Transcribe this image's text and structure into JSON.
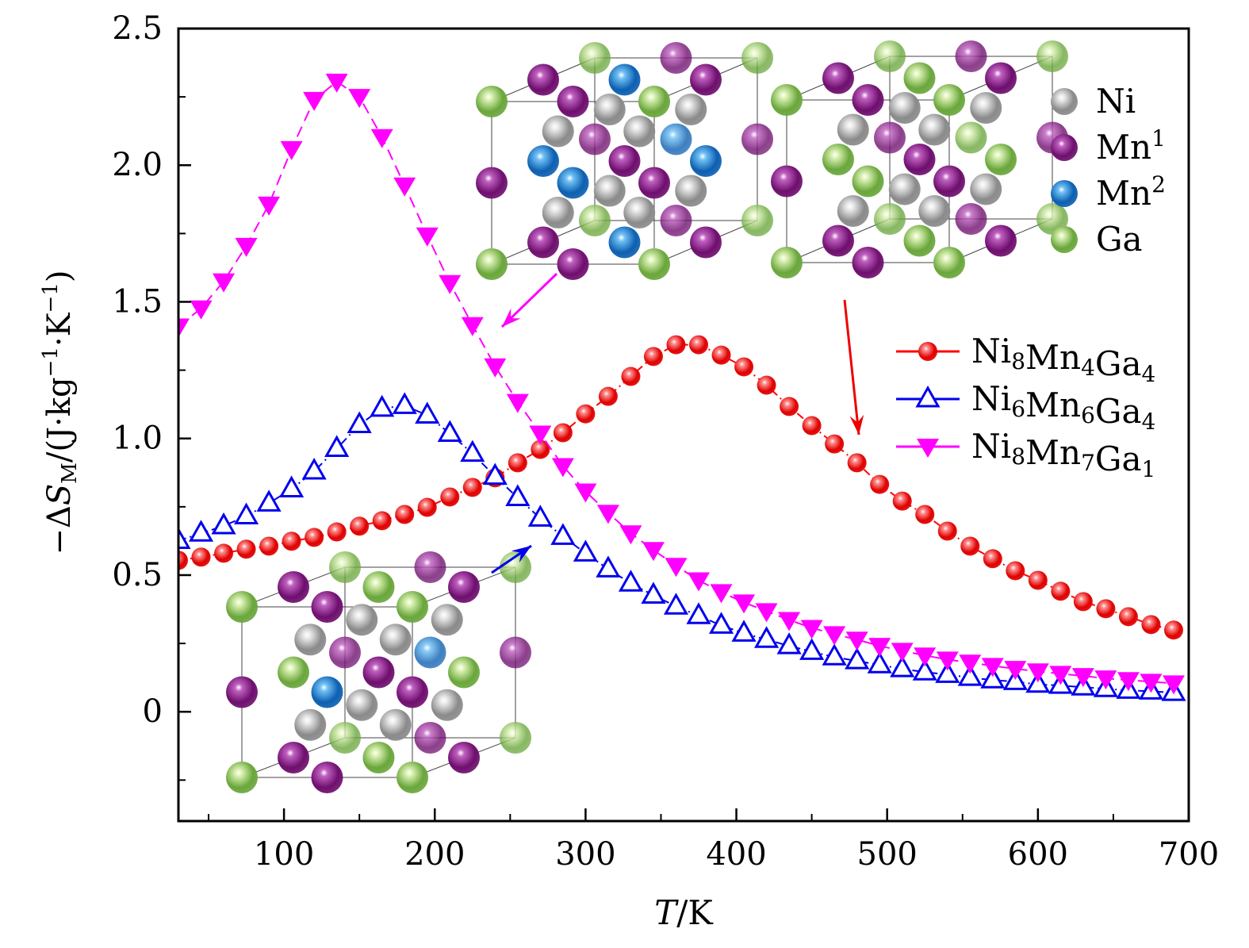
{
  "chart_data": {
    "type": "line",
    "title": "",
    "xlabel": "T/K",
    "ylabel": "−ΔS_M/(J·kg^−1·K^−1)",
    "xlim": [
      30,
      700
    ],
    "ylim": [
      -0.4,
      2.5
    ],
    "xticks": [
      100,
      200,
      300,
      400,
      500,
      600,
      700
    ],
    "yticks": [
      0,
      0.5,
      1.0,
      1.5,
      2.0,
      2.5
    ],
    "ytick_labels": [
      "0",
      "0.5",
      "1.0",
      "1.5",
      "2.0",
      "2.5"
    ],
    "grid": false,
    "legend_position": "right",
    "x": [
      30,
      45,
      60,
      75,
      90,
      105,
      120,
      135,
      150,
      165,
      180,
      195,
      210,
      225,
      240,
      255,
      270,
      285,
      300,
      315,
      330,
      345,
      360,
      375,
      390,
      405,
      420,
      435,
      450,
      465,
      480,
      495,
      510,
      525,
      540,
      555,
      570,
      585,
      600,
      615,
      630,
      645,
      660,
      675,
      690
    ],
    "series": [
      {
        "name": "Ni8Mn4Ga4",
        "label_parts": [
          [
            "Ni",
            "8"
          ],
          [
            "Mn",
            "4"
          ],
          [
            "Ga",
            "4"
          ]
        ],
        "color": "#ff0000",
        "marker": "sphere",
        "values": [
          0.554,
          0.566,
          0.58,
          0.595,
          0.606,
          0.624,
          0.638,
          0.658,
          0.679,
          0.699,
          0.722,
          0.748,
          0.786,
          0.821,
          0.856,
          0.911,
          0.96,
          1.021,
          1.09,
          1.154,
          1.227,
          1.3,
          1.343,
          1.343,
          1.305,
          1.262,
          1.195,
          1.117,
          1.047,
          0.98,
          0.911,
          0.832,
          0.771,
          0.722,
          0.661,
          0.606,
          0.56,
          0.516,
          0.481,
          0.441,
          0.403,
          0.377,
          0.348,
          0.319,
          0.299
        ]
      },
      {
        "name": "Ni6Mn6Ga4",
        "label_parts": [
          [
            "Ni",
            "6"
          ],
          [
            "Mn",
            "6"
          ],
          [
            "Ga",
            "4"
          ]
        ],
        "color": "#0000ee",
        "marker": "triangle-up-open",
        "values": [
          0.626,
          0.653,
          0.68,
          0.716,
          0.763,
          0.815,
          0.88,
          0.963,
          1.05,
          1.11,
          1.12,
          1.085,
          1.018,
          0.945,
          0.861,
          0.783,
          0.708,
          0.641,
          0.58,
          0.522,
          0.47,
          0.426,
          0.386,
          0.351,
          0.316,
          0.287,
          0.264,
          0.241,
          0.22,
          0.2,
          0.186,
          0.171,
          0.157,
          0.145,
          0.136,
          0.125,
          0.116,
          0.11,
          0.1,
          0.096,
          0.09,
          0.084,
          0.078,
          0.075,
          0.07
        ]
      },
      {
        "name": "Ni8Mn7Ga1",
        "label_parts": [
          [
            "Ni",
            "8"
          ],
          [
            "Mn",
            "7"
          ],
          [
            "Ga",
            "1"
          ]
        ],
        "color": "#ff00ff",
        "marker": "triangle-down-filled",
        "values": [
          1.41,
          1.476,
          1.575,
          1.705,
          1.856,
          2.059,
          2.239,
          2.306,
          2.25,
          2.103,
          1.926,
          1.743,
          1.569,
          1.415,
          1.264,
          1.134,
          1.018,
          0.899,
          0.806,
          0.728,
          0.653,
          0.592,
          0.534,
          0.481,
          0.438,
          0.4,
          0.368,
          0.336,
          0.307,
          0.284,
          0.264,
          0.241,
          0.223,
          0.206,
          0.191,
          0.18,
          0.168,
          0.157,
          0.148,
          0.139,
          0.131,
          0.122,
          0.116,
          0.11,
          0.104
        ]
      }
    ],
    "atom_legend": [
      {
        "label": "Ni",
        "sup": "",
        "color": "#b8b8b8"
      },
      {
        "label": "Mn",
        "sup": "1",
        "color": "#8b1a8b"
      },
      {
        "label": "Mn",
        "sup": "2",
        "color": "#1e7fd0"
      },
      {
        "label": "Ga",
        "sup": "",
        "color": "#8cc65a"
      }
    ]
  }
}
